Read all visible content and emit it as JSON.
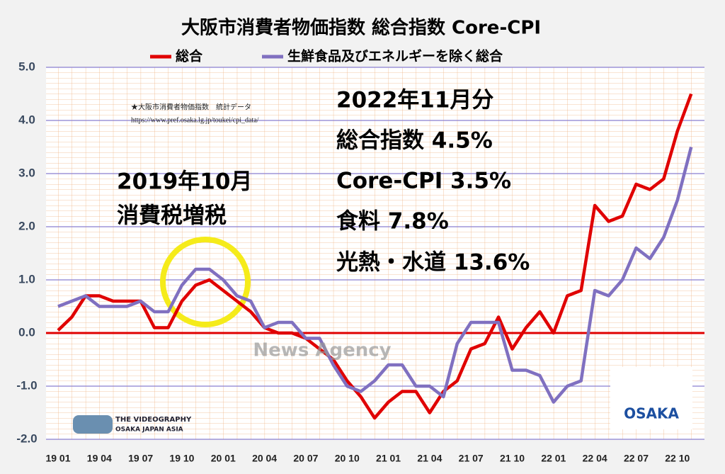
{
  "chart_data": {
    "type": "line",
    "title": "大阪市消費者物価指数 総合指数 Core-CPI",
    "categories": [
      "19 01",
      null,
      null,
      "19 04",
      null,
      null,
      "19 07",
      null,
      null,
      "19 10",
      null,
      null,
      "20 01",
      null,
      null,
      "20 04",
      null,
      null,
      "20 07",
      null,
      null,
      "20 10",
      null,
      null,
      "21 01",
      null,
      null,
      "21 04",
      null,
      null,
      "21 07",
      null,
      null,
      "21 10",
      null,
      null,
      "22 01",
      null,
      null,
      "22 04",
      null,
      null,
      "22 07",
      null,
      null,
      "22 10",
      null
    ],
    "series": [
      {
        "name": "総合",
        "color": "#e00000",
        "values": [
          0.05,
          0.3,
          0.7,
          0.7,
          0.6,
          0.6,
          0.6,
          0.1,
          0.1,
          0.6,
          0.9,
          1.0,
          0.8,
          0.6,
          0.4,
          0.1,
          0.0,
          0.0,
          -0.1,
          -0.3,
          -0.5,
          -0.9,
          -1.2,
          -1.6,
          -1.3,
          -1.1,
          -1.1,
          -1.5,
          -1.1,
          -0.9,
          -0.3,
          -0.2,
          0.3,
          -0.3,
          0.1,
          0.4,
          0.0,
          0.7,
          0.8,
          2.4,
          2.1,
          2.2,
          2.8,
          2.7,
          2.9,
          3.8,
          4.5
        ]
      },
      {
        "name": "生鮮食品及びエネルギーを除く総合",
        "color": "#8070c0",
        "values": [
          0.5,
          0.6,
          0.7,
          0.5,
          0.5,
          0.5,
          0.6,
          0.4,
          0.4,
          0.9,
          1.2,
          1.2,
          1.0,
          0.7,
          0.6,
          0.1,
          0.2,
          0.2,
          -0.1,
          -0.1,
          -0.6,
          -1.0,
          -1.1,
          -0.9,
          -0.6,
          -0.6,
          -1.0,
          -1.0,
          -1.2,
          -0.2,
          0.2,
          0.2,
          0.2,
          -0.7,
          -0.7,
          -0.8,
          -1.3,
          -1.0,
          -0.9,
          0.8,
          0.7,
          1.0,
          1.6,
          1.4,
          1.8,
          2.5,
          3.5
        ]
      }
    ],
    "ylim": [
      -2,
      5
    ],
    "yticks": [
      {
        "value": -2,
        "label": "-2.0"
      },
      {
        "value": -1,
        "label": "-1.0"
      },
      {
        "value": 0,
        "label": "0.0"
      },
      {
        "value": 1,
        "label": "1.0"
      },
      {
        "value": 2,
        "label": "2.0"
      },
      {
        "value": 3,
        "label": "3.0"
      },
      {
        "value": 4,
        "label": "4.0"
      },
      {
        "value": 5,
        "label": "5.0"
      }
    ],
    "grid": true,
    "annotations": [
      "★大阪市消費者物価指数　統計データ",
      "https://www.pref.osaka.lg.jp/toukei/cpi_data/",
      "2019年10月",
      "消費税増税",
      "2022年11月分",
      "総合指数 4.5%",
      "Core-CPI 3.5%",
      "食料 7.8%",
      "光熱・水道 13.6%"
    ],
    "watermarks": [
      "News Agency",
      "THE VIDEOGRAPHY",
      "OSAKA JAPAN ASIA",
      "OSAKA"
    ]
  }
}
